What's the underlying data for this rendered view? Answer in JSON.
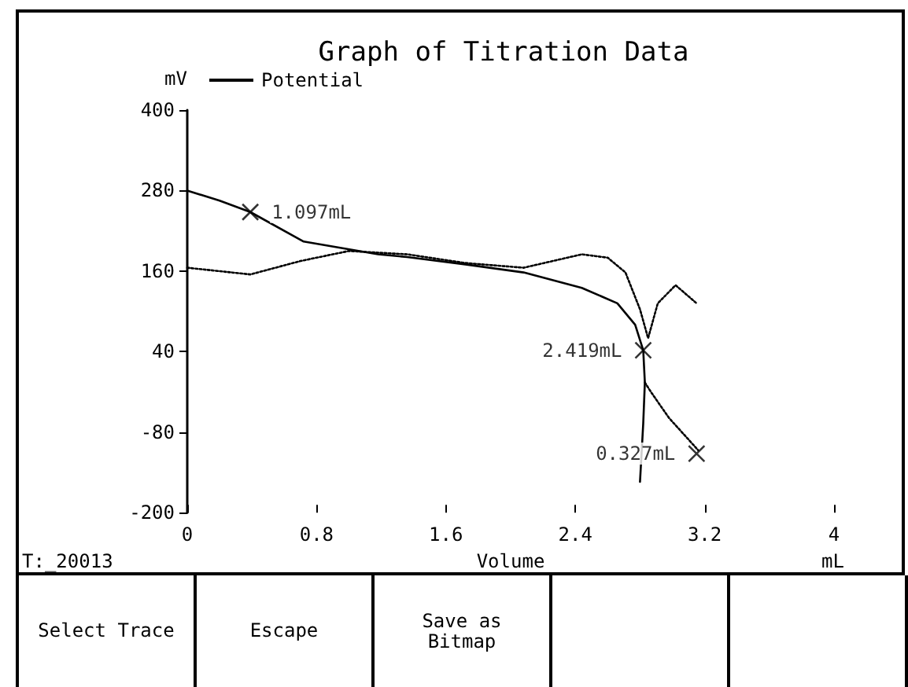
{
  "chart_data": {
    "type": "line",
    "title": "Graph of Titration Data",
    "xlabel": "Volume",
    "ylabel": "mV",
    "xlim": [
      0,
      4
    ],
    "xticks": [
      0,
      0.8,
      1.6,
      2.4,
      3.2,
      4
    ],
    "ylim": [
      -200,
      400
    ],
    "yticks": [
      -200,
      -80,
      40,
      160,
      280,
      400
    ],
    "grid": false,
    "legend": "top left",
    "series": [
      {
        "name": "Potential",
        "color": "#000000",
        "line_style": "solid",
        "x": [
          0,
          0.2,
          0.39,
          0.72,
          1.18,
          1.36,
          1.72,
          2.08,
          2.44,
          2.66,
          2.77,
          2.82,
          2.83,
          2.82,
          2.8
        ],
        "values": [
          280,
          265,
          248,
          204,
          185,
          181,
          170,
          158,
          135,
          112,
          80,
          42,
          -6,
          -67,
          -154
        ]
      },
      {
        "color": "#000000",
        "line_style": "dotted",
        "x": [
          0,
          0.39,
          0.7,
          1.0,
          1.36,
          1.72,
          2.08,
          2.44,
          2.6,
          2.71,
          2.8,
          2.85,
          2.91,
          3.02,
          3.15
        ],
        "values": [
          165,
          155,
          175,
          190,
          185,
          172,
          165,
          185,
          180,
          158,
          103,
          60,
          112,
          139,
          112
        ]
      },
      {
        "color": "#000000",
        "line_style": "dotted",
        "x": [
          2.83,
          2.87,
          2.98,
          3.16
        ],
        "values": [
          -6,
          -21,
          -59,
          -107
        ]
      }
    ],
    "annotations": [
      {
        "text": "1.097mL",
        "x": 0.39,
        "y": 248
      },
      {
        "text": "2.419mL",
        "x": 2.82,
        "y": 42
      },
      {
        "text": "0.327mL",
        "x": 3.15,
        "y": -112
      },
      "T:_20013",
      "mL",
      "Select Trace",
      "Escape",
      "Save as Bitmap"
    ]
  }
}
